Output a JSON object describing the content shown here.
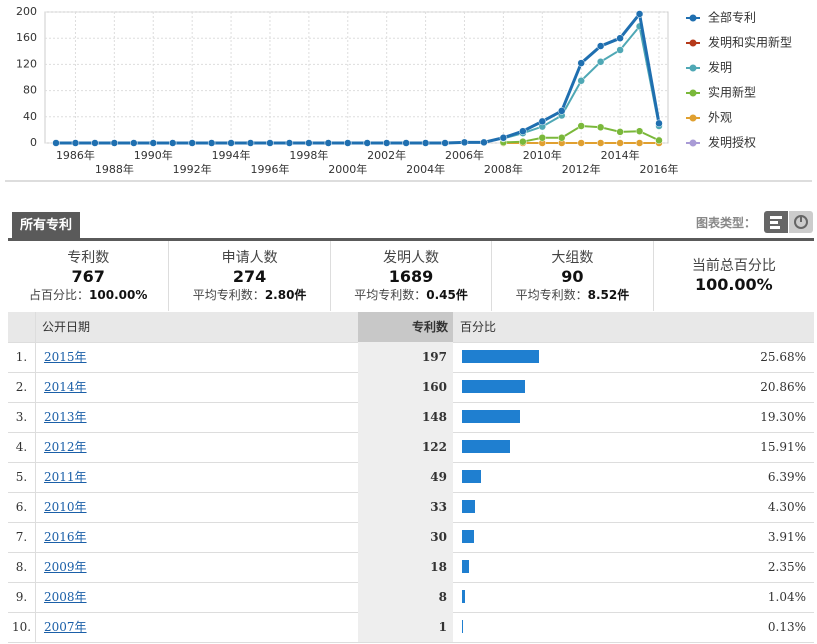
{
  "chart_data": {
    "type": "line",
    "categories": [
      null,
      "1986年",
      null,
      "1988年",
      null,
      "1990年",
      null,
      "1992年",
      null,
      "1994年",
      null,
      "1996年",
      null,
      "1998年",
      null,
      "2000年",
      null,
      "2002年",
      null,
      "2004年",
      null,
      "2006年",
      null,
      "2008年",
      null,
      "2010年",
      null,
      "2012年",
      null,
      "2014年",
      null,
      "2016年"
    ],
    "ylim": [
      0,
      200
    ],
    "yticks": [
      0,
      40,
      80,
      120,
      160,
      200
    ],
    "grid": true,
    "series": [
      {
        "name": "全部专利",
        "color": "#1f6fb0",
        "values": [
          0,
          0,
          0,
          0,
          0,
          0,
          0,
          0,
          0,
          0,
          0,
          0,
          0,
          0,
          0,
          0,
          0,
          0,
          0,
          0,
          0,
          1,
          1,
          8,
          18,
          33,
          49,
          122,
          148,
          160,
          197,
          30
        ]
      },
      {
        "name": "发明和实用新型",
        "color": "#b5391a",
        "values": [
          null,
          null,
          null,
          null,
          null,
          null,
          null,
          null,
          null,
          null,
          null,
          null,
          null,
          null,
          null,
          null,
          null,
          null,
          null,
          null,
          null,
          null,
          null,
          null,
          null,
          null,
          null,
          null,
          null,
          null,
          null,
          null
        ]
      },
      {
        "name": "发明",
        "color": "#4fa8b5",
        "values": [
          null,
          null,
          null,
          null,
          null,
          null,
          null,
          null,
          null,
          null,
          null,
          null,
          null,
          null,
          null,
          null,
          null,
          null,
          null,
          null,
          null,
          null,
          null,
          7,
          15,
          25,
          42,
          95,
          124,
          142,
          178,
          26
        ]
      },
      {
        "name": "实用新型",
        "color": "#7ab83a",
        "values": [
          null,
          null,
          null,
          null,
          null,
          null,
          null,
          null,
          null,
          null,
          null,
          null,
          null,
          null,
          null,
          null,
          null,
          null,
          null,
          null,
          null,
          null,
          null,
          1,
          2,
          8,
          8,
          26,
          24,
          17,
          18,
          4
        ]
      },
      {
        "name": "外观",
        "color": "#e0a030",
        "values": [
          null,
          null,
          null,
          null,
          null,
          null,
          null,
          null,
          null,
          null,
          null,
          null,
          null,
          null,
          null,
          null,
          null,
          null,
          null,
          null,
          null,
          null,
          null,
          0,
          0,
          0,
          0,
          0,
          0,
          0,
          0,
          0
        ]
      },
      {
        "name": "发明授权",
        "color": "#a99bd6",
        "values": [
          null,
          null,
          null,
          null,
          null,
          null,
          null,
          null,
          null,
          null,
          null,
          null,
          null,
          null,
          null,
          null,
          null,
          null,
          null,
          null,
          null,
          null,
          null,
          null,
          null,
          null,
          null,
          null,
          null,
          null,
          null,
          null
        ]
      }
    ]
  },
  "tab": "所有专利",
  "chart_type_label": "图表类型：",
  "stats": [
    {
      "name": "专利数",
      "value": "767",
      "sub_label": "占百分比：",
      "sub_value": "100.00%"
    },
    {
      "name": "申请人数",
      "value": "274",
      "sub_label": "平均专利数：",
      "sub_value": "2.80件"
    },
    {
      "name": "发明人数",
      "value": "1689",
      "sub_label": "平均专利数：",
      "sub_value": "0.45件"
    },
    {
      "name": "大组数",
      "value": "90",
      "sub_label": "平均专利数：",
      "sub_value": "8.52件"
    },
    {
      "name": "当前总百分比",
      "value": "100.00%"
    }
  ],
  "table": {
    "headers": [
      "公开日期",
      "专利数",
      "百分比"
    ],
    "rows": [
      {
        "rank": "1.",
        "year": "2015年",
        "count": 197,
        "percent": 25.68,
        "percent_label": "25.68%"
      },
      {
        "rank": "2.",
        "year": "2014年",
        "count": 160,
        "percent": 20.86,
        "percent_label": "20.86%"
      },
      {
        "rank": "3.",
        "year": "2013年",
        "count": 148,
        "percent": 19.3,
        "percent_label": "19.30%"
      },
      {
        "rank": "4.",
        "year": "2012年",
        "count": 122,
        "percent": 15.91,
        "percent_label": "15.91%"
      },
      {
        "rank": "5.",
        "year": "2011年",
        "count": 49,
        "percent": 6.39,
        "percent_label": "6.39%"
      },
      {
        "rank": "6.",
        "year": "2010年",
        "count": 33,
        "percent": 4.3,
        "percent_label": "4.30%"
      },
      {
        "rank": "7.",
        "year": "2016年",
        "count": 30,
        "percent": 3.91,
        "percent_label": "3.91%"
      },
      {
        "rank": "8.",
        "year": "2009年",
        "count": 18,
        "percent": 2.35,
        "percent_label": "2.35%"
      },
      {
        "rank": "9.",
        "year": "2008年",
        "count": 8,
        "percent": 1.04,
        "percent_label": "1.04%"
      },
      {
        "rank": "10.",
        "year": "2007年",
        "count": 1,
        "percent": 0.13,
        "percent_label": "0.13%"
      }
    ]
  }
}
